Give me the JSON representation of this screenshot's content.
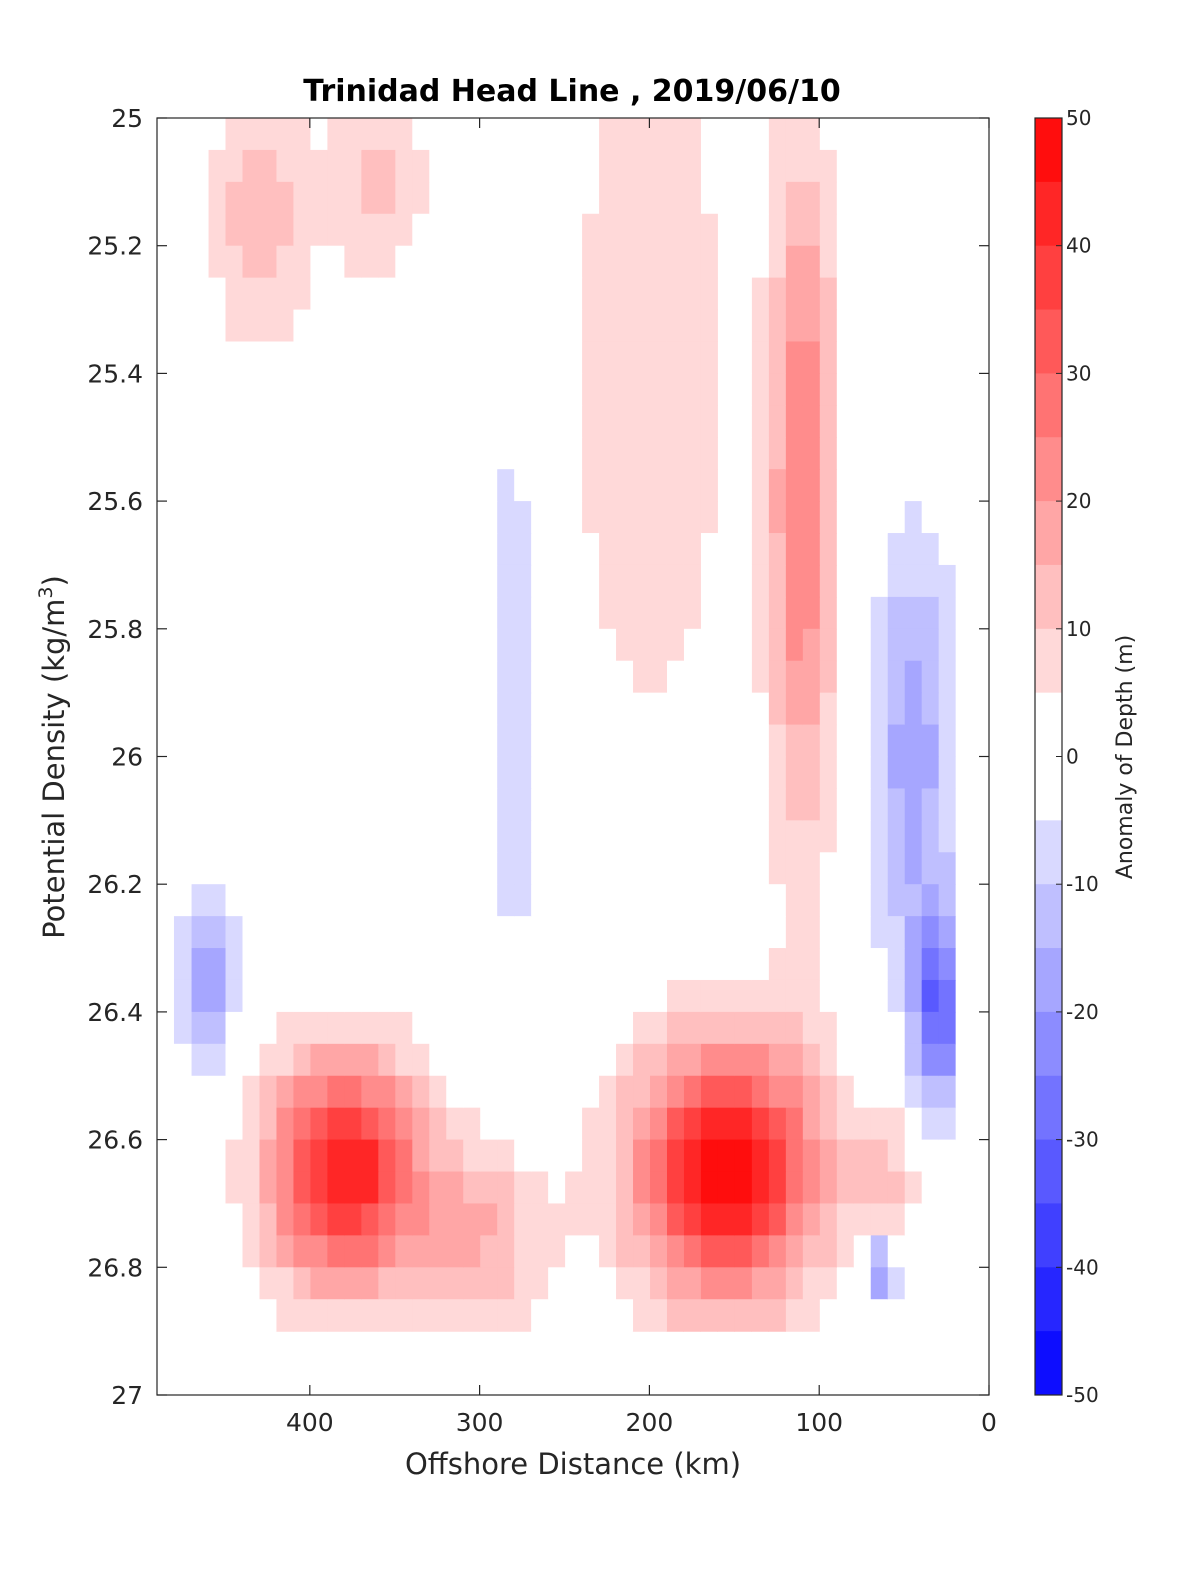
{
  "chart_data": {
    "type": "heatmap",
    "title": "Trinidad Head Line , 2019/06/10",
    "xlabel": "Offshore Distance (km)",
    "ylabel": "Potential Density (kg/m",
    "ylabel_sup": "3",
    "ylabel_suffix": ")",
    "x_reversed": true,
    "y_reversed": true,
    "xlim": [
      490,
      0
    ],
    "ylim": [
      25,
      27
    ],
    "xticks": [
      400,
      300,
      200,
      100,
      0
    ],
    "yticks": [
      25,
      25.2,
      25.4,
      25.6,
      25.8,
      26,
      26.2,
      26.4,
      26.6,
      26.8,
      27
    ],
    "data_extent": {
      "x": [
        20,
        480
      ],
      "y": [
        25,
        26.9
      ]
    },
    "colorbar": {
      "label": "Anomaly of Depth (m)",
      "range": [
        -50,
        50
      ],
      "levels_step": 5,
      "ticks": [
        50,
        40,
        30,
        20,
        10,
        0,
        -10,
        -20,
        -30,
        -40,
        -50
      ],
      "color_max": "#ff0000",
      "color_mid": "#ffffff",
      "color_min": "#0000ff"
    },
    "anomaly_features": [
      {
        "x": 380,
        "y": 26.65,
        "value": 45,
        "sx": 45,
        "sy": 0.18
      },
      {
        "x": 155,
        "y": 26.65,
        "value": 48,
        "sx": 55,
        "sy": 0.2
      },
      {
        "x": 110,
        "y": 25.6,
        "value": 25,
        "sx": 20,
        "sy": 0.55
      },
      {
        "x": 200,
        "y": 25.4,
        "value": 10,
        "sx": 50,
        "sy": 0.6
      },
      {
        "x": 430,
        "y": 25.15,
        "value": 14,
        "sx": 30,
        "sy": 0.2
      },
      {
        "x": 360,
        "y": 25.1,
        "value": 12,
        "sx": 30,
        "sy": 0.15
      },
      {
        "x": 300,
        "y": 26.75,
        "value": 15,
        "sx": 40,
        "sy": 0.15
      },
      {
        "x": 280,
        "y": 25.9,
        "value": -9,
        "sx": 20,
        "sy": 0.5
      },
      {
        "x": 460,
        "y": 26.35,
        "value": -18,
        "sx": 15,
        "sy": 0.15
      },
      {
        "x": 30,
        "y": 26.4,
        "value": -30,
        "sx": 15,
        "sy": 0.15
      },
      {
        "x": 45,
        "y": 26.0,
        "value": -18,
        "sx": 25,
        "sy": 0.35
      },
      {
        "x": 65,
        "y": 26.8,
        "value": -22,
        "sx": 10,
        "sy": 0.05
      },
      {
        "x": 60,
        "y": 26.65,
        "value": 10,
        "sx": 20,
        "sy": 0.1
      }
    ]
  }
}
